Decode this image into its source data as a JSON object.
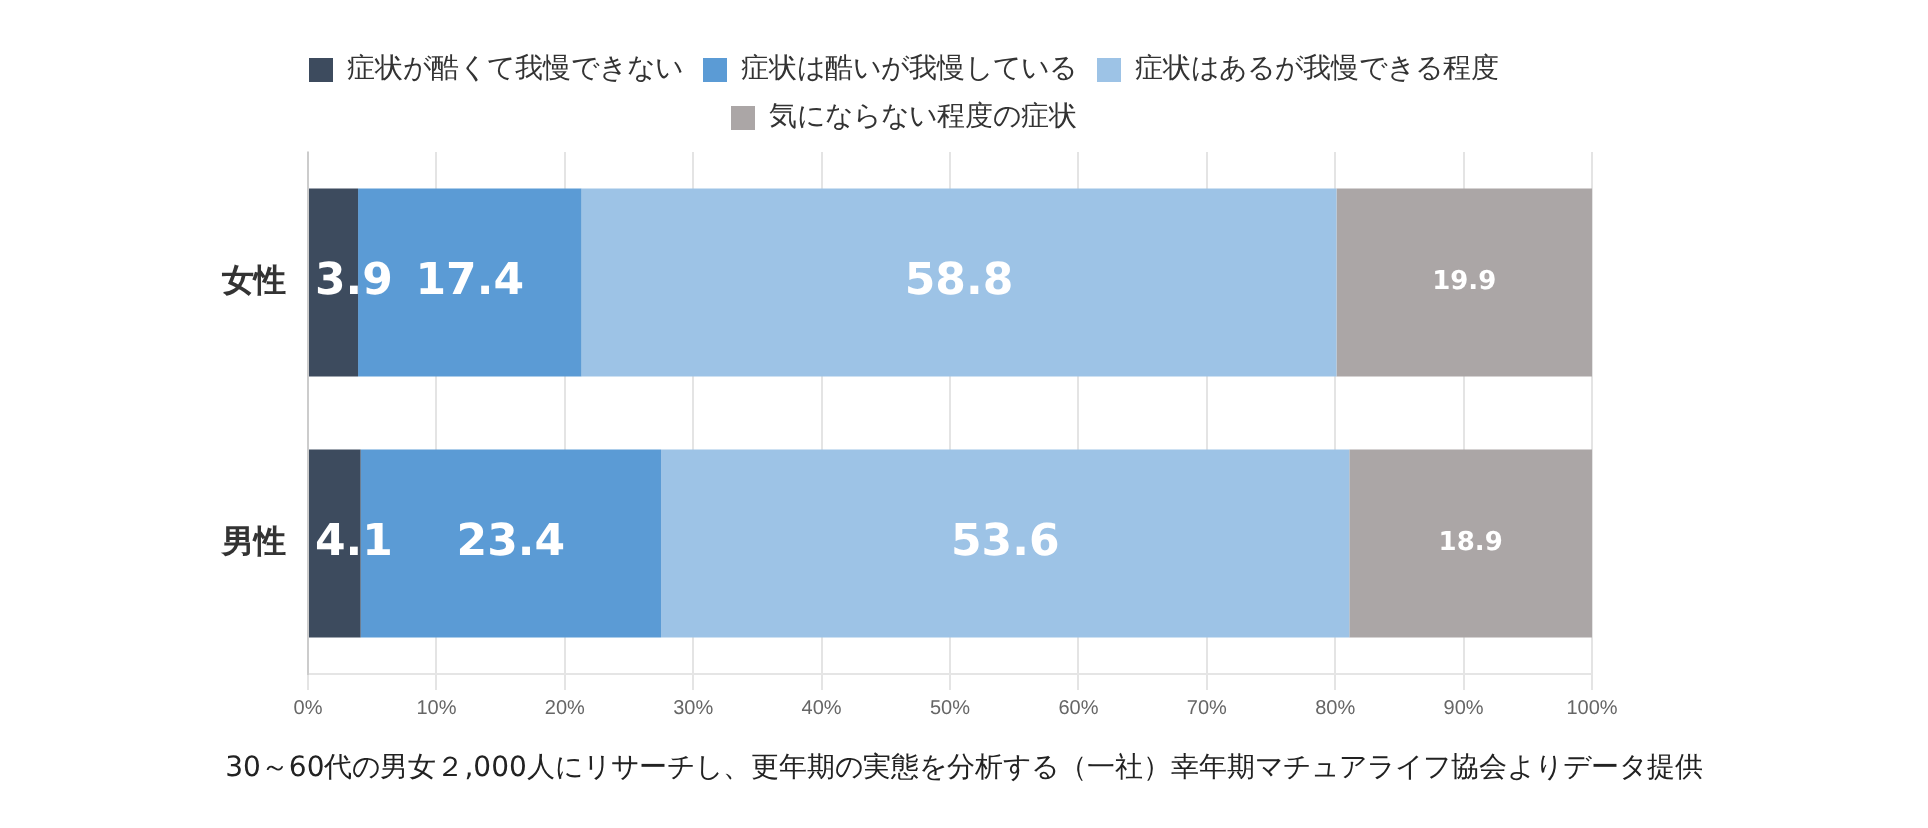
{
  "chart_data": {
    "type": "bar",
    "orientation": "horizontal",
    "stacked": true,
    "categories": [
      "女性",
      "男性"
    ],
    "series": [
      {
        "name": "症状が酷くて我慢できない",
        "color": "#3d4b5e",
        "values": [
          3.9,
          4.1
        ]
      },
      {
        "name": "症状は酷いが我慢している",
        "color": "#5b9bd5",
        "values": [
          17.4,
          23.4
        ]
      },
      {
        "name": "症状はあるが我慢できる程度",
        "color": "#9dc3e6",
        "values": [
          58.8,
          53.6
        ]
      },
      {
        "name": "気にならない程度の症状",
        "color": "#aba6a6",
        "values": [
          19.9,
          18.9
        ]
      }
    ],
    "xlim": [
      0,
      100
    ],
    "xticks": [
      {
        "value": 0,
        "label": "0%"
      },
      {
        "value": 10,
        "label": "10%"
      },
      {
        "value": 20,
        "label": "20%"
      },
      {
        "value": 30,
        "label": "30%"
      },
      {
        "value": 40,
        "label": "40%"
      },
      {
        "value": 50,
        "label": "50%"
      },
      {
        "value": 60,
        "label": "60%"
      },
      {
        "value": 70,
        "label": "70%"
      },
      {
        "value": 80,
        "label": "80%"
      },
      {
        "value": 90,
        "label": "90%"
      },
      {
        "value": 100,
        "label": "100%"
      }
    ],
    "grid": "x",
    "legend": "top",
    "data_labels": true,
    "annotations": [
      "30～60代の男女２,000人にリサーチし、更年期の実態を分析する（一社）幸年期マチュアライフ協会よりデータ提供"
    ]
  }
}
